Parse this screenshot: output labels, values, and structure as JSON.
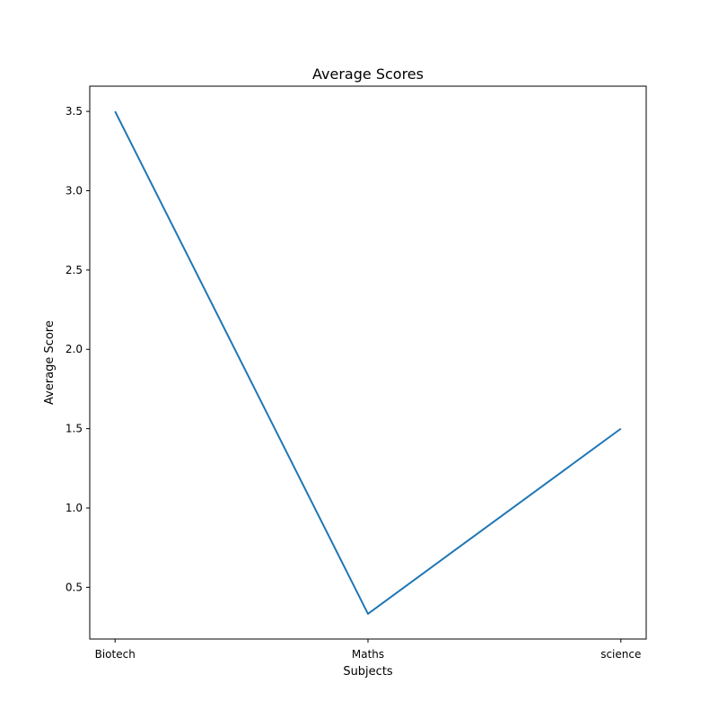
{
  "chart_data": {
    "type": "line",
    "title": "Average Scores",
    "xlabel": "Subjects",
    "ylabel": "Average Score",
    "categories": [
      "Biotech",
      "Maths",
      "science"
    ],
    "series": [
      {
        "values": [
          3.5,
          0.333,
          1.5
        ]
      }
    ],
    "ylim": [
      0.174,
      3.659
    ],
    "yticks": [
      {
        "value": 0.5,
        "label": "0.5"
      },
      {
        "value": 1.0,
        "label": "1.0"
      },
      {
        "value": 1.5,
        "label": "1.5"
      },
      {
        "value": 2.0,
        "label": "2.0"
      },
      {
        "value": 2.5,
        "label": "2.5"
      },
      {
        "value": 3.0,
        "label": "3.0"
      },
      {
        "value": 3.5,
        "label": "3.5"
      }
    ],
    "grid": false,
    "line_color": "#1f77b4"
  }
}
